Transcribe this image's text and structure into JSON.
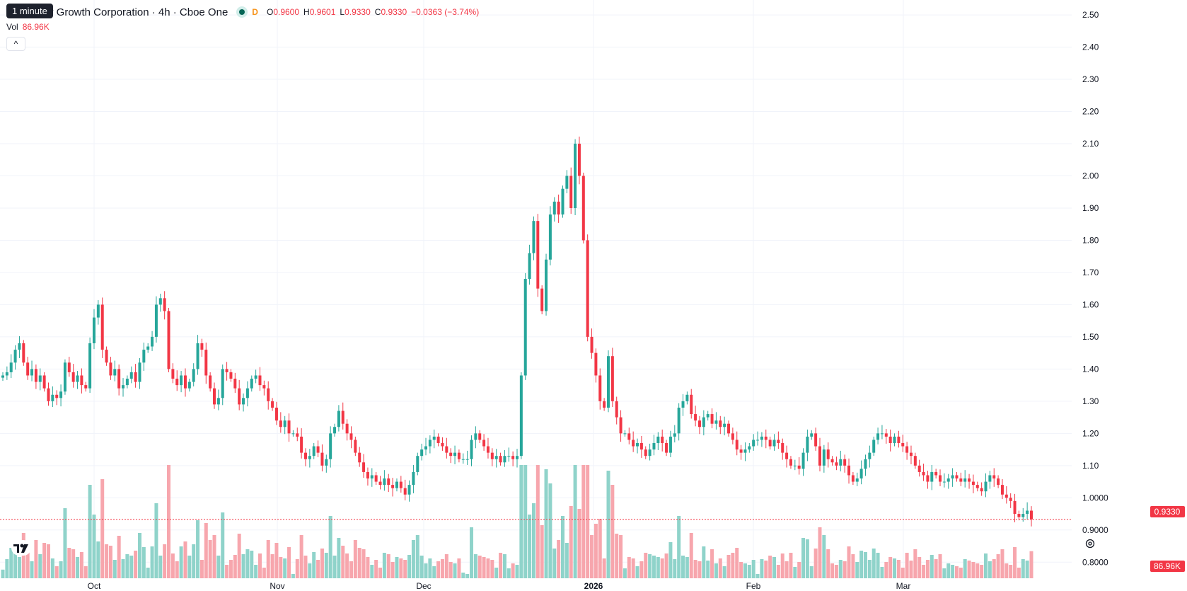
{
  "header": {
    "title": "y Growth Corporation · 4h · Cboe One",
    "tooltip": "1 minute",
    "flag_letter": "D",
    "open_label": "O",
    "open_value": "0.9600",
    "high_label": "H",
    "high_value": "0.9601",
    "low_label": "L",
    "low_value": "0.9330",
    "close_label": "C",
    "close_value": "0.9330",
    "change": "−0.0363 (−3.74%)",
    "vol_label": "Vol",
    "vol_value": "86.96K",
    "collapse_glyph": "^"
  },
  "colors": {
    "up": "#26a69a",
    "down": "#f23645",
    "up_vol": "#8fd3ca",
    "down_vol": "#f7a6ad",
    "grid": "#f0f3fa"
  },
  "icons": {
    "settings": "gear-icon",
    "logo": "tradingview-logo"
  },
  "chart_data": {
    "type": "candlestick",
    "title": "y Growth Corporation · 4h · Cboe One",
    "ylim": [
      0.75,
      2.52
    ],
    "y_ticks": [
      "2.50",
      "2.40",
      "2.30",
      "2.20",
      "2.10",
      "2.00",
      "1.90",
      "1.80",
      "1.70",
      "1.60",
      "1.50",
      "1.40",
      "1.30",
      "1.20",
      "1.10",
      "1.0000",
      "0.9000",
      "0.8000"
    ],
    "x_ticks": [
      "Oct",
      "Nov",
      "Dec",
      "2026",
      "Feb",
      "Mar"
    ],
    "last_price_label": "0.9330",
    "last_volume_label": "86.96K",
    "series": [
      {
        "name": "price",
        "values": [
          1.38,
          1.39,
          1.42,
          1.46,
          1.48,
          1.42,
          1.38,
          1.4,
          1.36,
          1.38,
          1.34,
          1.3,
          1.32,
          1.31,
          1.33,
          1.42,
          1.39,
          1.36,
          1.38,
          1.35,
          1.34,
          1.48,
          1.56,
          1.6,
          1.46,
          1.42,
          1.38,
          1.4,
          1.34,
          1.35,
          1.37,
          1.39,
          1.36,
          1.42,
          1.46,
          1.47,
          1.5,
          1.6,
          1.62,
          1.58,
          1.4,
          1.37,
          1.35,
          1.38,
          1.34,
          1.36,
          1.4,
          1.48,
          1.46,
          1.38,
          1.34,
          1.29,
          1.31,
          1.4,
          1.39,
          1.37,
          1.34,
          1.29,
          1.31,
          1.34,
          1.37,
          1.38,
          1.35,
          1.34,
          1.3,
          1.28,
          1.24,
          1.22,
          1.24,
          1.2,
          1.2,
          1.19,
          1.14,
          1.12,
          1.13,
          1.16,
          1.14,
          1.1,
          1.12,
          1.2,
          1.22,
          1.27,
          1.23,
          1.2,
          1.18,
          1.14,
          1.11,
          1.08,
          1.06,
          1.07,
          1.05,
          1.04,
          1.06,
          1.04,
          1.03,
          1.05,
          1.03,
          1.01,
          1.04,
          1.08,
          1.13,
          1.15,
          1.16,
          1.18,
          1.19,
          1.17,
          1.16,
          1.14,
          1.13,
          1.14,
          1.12,
          1.12,
          1.12,
          1.18,
          1.2,
          1.18,
          1.16,
          1.14,
          1.12,
          1.13,
          1.11,
          1.13,
          1.13,
          1.12,
          1.13,
          1.38,
          1.68,
          1.76,
          1.86,
          1.65,
          1.58,
          1.74,
          1.88,
          1.92,
          1.88,
          1.96,
          2.0,
          1.9,
          2.1,
          2.0,
          1.8,
          1.5,
          1.45,
          1.38,
          1.3,
          1.28,
          1.44,
          1.3,
          1.25,
          1.2,
          1.2,
          1.18,
          1.16,
          1.17,
          1.15,
          1.13,
          1.15,
          1.17,
          1.19,
          1.17,
          1.14,
          1.19,
          1.2,
          1.28,
          1.3,
          1.32,
          1.26,
          1.24,
          1.22,
          1.25,
          1.26,
          1.23,
          1.24,
          1.22,
          1.23,
          1.2,
          1.18,
          1.15,
          1.14,
          1.15,
          1.16,
          1.18,
          1.18,
          1.19,
          1.18,
          1.16,
          1.18,
          1.17,
          1.14,
          1.12,
          1.1,
          1.1,
          1.09,
          1.14,
          1.19,
          1.2,
          1.16,
          1.1,
          1.15,
          1.12,
          1.11,
          1.1,
          1.12,
          1.1,
          1.07,
          1.05,
          1.06,
          1.09,
          1.12,
          1.14,
          1.18,
          1.2,
          1.2,
          1.19,
          1.17,
          1.19,
          1.17,
          1.16,
          1.14,
          1.13,
          1.1,
          1.08,
          1.07,
          1.05,
          1.08,
          1.07,
          1.05,
          1.05,
          1.06,
          1.07,
          1.06,
          1.05,
          1.06,
          1.05,
          1.04,
          1.03,
          1.02,
          1.05,
          1.07,
          1.06,
          1.04,
          1.01,
          1.0,
          0.99,
          0.95,
          0.94,
          0.95,
          0.96,
          0.933
        ]
      }
    ]
  }
}
